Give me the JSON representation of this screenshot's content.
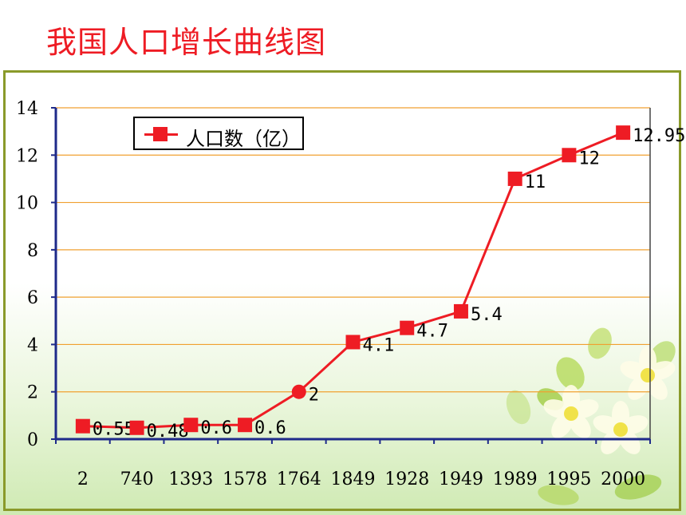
{
  "slide": {
    "title": "我国人口增长曲线图"
  },
  "chart_data": {
    "type": "line",
    "categories": [
      "2",
      "740",
      "1393",
      "1578",
      "1764",
      "1849",
      "1928",
      "1949",
      "1989",
      "1995",
      "2000"
    ],
    "series": [
      {
        "name": "人口数（亿）",
        "values": [
          0.55,
          0.48,
          0.6,
          0.6,
          2,
          4.1,
          4.7,
          5.4,
          11,
          12,
          12.95
        ]
      }
    ],
    "data_labels": [
      "0.55",
      "0.48",
      "0.6",
      "0.6",
      "2",
      "4.1",
      "4.7",
      "5.4",
      "11",
      "12",
      "12.95"
    ],
    "y_ticks": [
      "0",
      "2",
      "4",
      "6",
      "8",
      "10",
      "12",
      "14"
    ],
    "ylim": [
      0,
      14
    ],
    "grid": "horizontal",
    "legend_position": "top-left",
    "colors": {
      "series": "#ee1c24",
      "grid": "#f0a030",
      "axis": "#1e2a8a",
      "frame": "#8a9a2a"
    }
  }
}
